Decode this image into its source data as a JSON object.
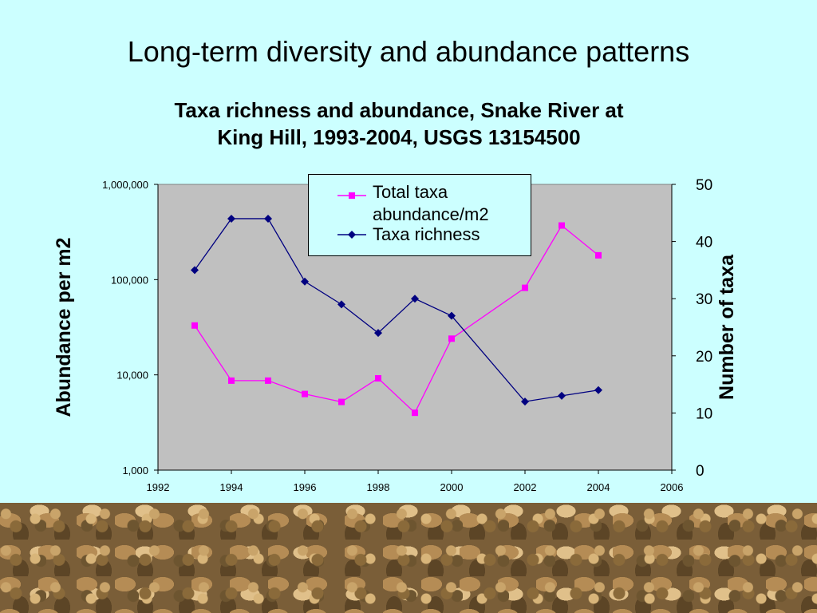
{
  "slide": {
    "title": "Long-term diversity and abundance patterns"
  },
  "chart_data": {
    "type": "line",
    "title_line1": "Taxa richness and abundance, Snake River at",
    "title_line2": "King Hill, 1993-2004, USGS 13154500",
    "ylabel": "Abundance per m2",
    "y2label": "Number of taxa",
    "xlim": [
      1992,
      2006
    ],
    "xticks": [
      "1992",
      "1994",
      "1996",
      "1998",
      "2000",
      "2002",
      "2004",
      "2006"
    ],
    "ylim": [
      1000,
      1000000
    ],
    "yscale": "log",
    "yticks": [
      "1,000",
      "10,000",
      "100,000",
      "1,000,000"
    ],
    "y2lim": [
      0,
      50
    ],
    "y2ticks": [
      "0",
      "10",
      "20",
      "30",
      "40",
      "50"
    ],
    "plot_background": "#c0c0c0",
    "legend_position": "top-center",
    "series": [
      {
        "name": "Total taxa abundance/m2",
        "name_line1": "Total taxa",
        "name_line2": "abundance/m2",
        "axis": "left",
        "color": "#ff00ff",
        "marker": "square",
        "x": [
          1993,
          1994,
          1995,
          1996,
          1997,
          1998,
          1999,
          2000,
          2002,
          2003,
          2004
        ],
        "values": [
          33000,
          8700,
          8700,
          6300,
          5200,
          9200,
          4000,
          24000,
          82000,
          370000,
          180000
        ]
      },
      {
        "name": "Taxa richness",
        "axis": "right",
        "color": "#000080",
        "marker": "diamond",
        "x": [
          1993,
          1994,
          1995,
          1996,
          1997,
          1998,
          1999,
          2000,
          2002,
          2003,
          2004
        ],
        "values": [
          35,
          44,
          44,
          33,
          29,
          24,
          30,
          27,
          12,
          13,
          14
        ]
      }
    ]
  }
}
